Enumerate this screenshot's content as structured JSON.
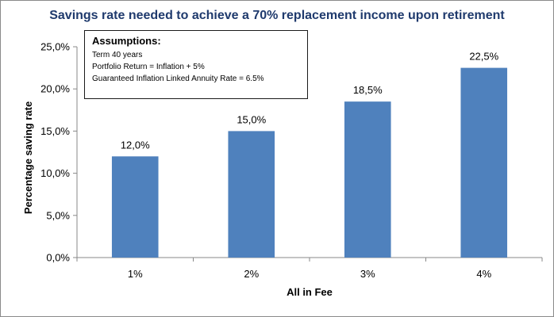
{
  "chart_data": {
    "type": "bar",
    "title": "Savings rate needed to achieve a 70% replacement income upon retirement",
    "xlabel": "All in Fee",
    "ylabel": "Percentage saving rate",
    "categories": [
      "1%",
      "2%",
      "3%",
      "4%"
    ],
    "values": [
      12.0,
      15.0,
      18.5,
      22.5
    ],
    "data_labels": [
      "12,0%",
      "15,0%",
      "18,5%",
      "22,5%"
    ],
    "ylim": [
      0,
      25
    ],
    "yticks": [
      {
        "value": 0,
        "label": "0,0%"
      },
      {
        "value": 5,
        "label": "5,0%"
      },
      {
        "value": 10,
        "label": "10,0%"
      },
      {
        "value": 15,
        "label": "15,0%"
      },
      {
        "value": 20,
        "label": "20,0%"
      },
      {
        "value": 25,
        "label": "25,0%"
      }
    ],
    "bar_color": "#4f81bd",
    "grid": false,
    "legend": "none"
  },
  "assumptions": {
    "heading": "Assumptions:",
    "lines": [
      "Term 40 years",
      "Portfolio Return = Inflation + 5%",
      "Guaranteed Inflation Linked Annuity Rate = 6.5%"
    ]
  }
}
